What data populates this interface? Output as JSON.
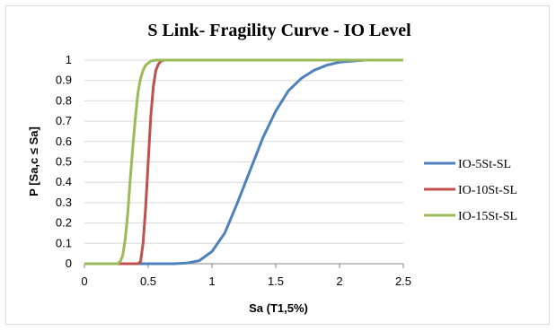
{
  "chart_data": {
    "type": "line",
    "title": "S Link- Fragility Curve - IO Level",
    "xlabel": "Sa (T1,5%)",
    "ylabel": "P [Sa,c ≤ Sa]",
    "xlim": [
      0,
      2.5
    ],
    "ylim": [
      0,
      1
    ],
    "xticks": [
      "0",
      "0.5",
      "1",
      "1.5",
      "2",
      "2.5"
    ],
    "yticks": [
      "0",
      "0.1",
      "0.2",
      "0.3",
      "0.4",
      "0.5",
      "0.6",
      "0.7",
      "0.8",
      "0.9",
      "1"
    ],
    "grid": "horizontal",
    "legend_position": "right",
    "series": [
      {
        "name": "IO-5St-SL",
        "color": "#4f81bd",
        "points": [
          [
            0,
            0
          ],
          [
            0.5,
            0
          ],
          [
            0.7,
            0
          ],
          [
            0.8,
            0.003
          ],
          [
            0.9,
            0.015
          ],
          [
            1.0,
            0.06
          ],
          [
            1.1,
            0.15
          ],
          [
            1.2,
            0.3
          ],
          [
            1.3,
            0.46
          ],
          [
            1.4,
            0.62
          ],
          [
            1.5,
            0.75
          ],
          [
            1.6,
            0.85
          ],
          [
            1.7,
            0.91
          ],
          [
            1.8,
            0.95
          ],
          [
            1.9,
            0.975
          ],
          [
            2.0,
            0.99
          ],
          [
            2.1,
            0.995
          ],
          [
            2.2,
            1
          ],
          [
            2.5,
            1
          ]
        ]
      },
      {
        "name": "IO-10St-SL",
        "color": "#c0504d",
        "points": [
          [
            0,
            0
          ],
          [
            0.42,
            0
          ],
          [
            0.44,
            0.01
          ],
          [
            0.46,
            0.1
          ],
          [
            0.48,
            0.28
          ],
          [
            0.5,
            0.5
          ],
          [
            0.52,
            0.72
          ],
          [
            0.54,
            0.87
          ],
          [
            0.56,
            0.95
          ],
          [
            0.58,
            0.98
          ],
          [
            0.6,
            0.995
          ],
          [
            0.63,
            1
          ],
          [
            2.5,
            1
          ]
        ]
      },
      {
        "name": "IO-15St-SL",
        "color": "#9bbb59",
        "points": [
          [
            0,
            0
          ],
          [
            0.26,
            0
          ],
          [
            0.28,
            0.01
          ],
          [
            0.3,
            0.04
          ],
          [
            0.32,
            0.12
          ],
          [
            0.34,
            0.25
          ],
          [
            0.36,
            0.42
          ],
          [
            0.38,
            0.58
          ],
          [
            0.4,
            0.72
          ],
          [
            0.42,
            0.84
          ],
          [
            0.44,
            0.91
          ],
          [
            0.46,
            0.95
          ],
          [
            0.48,
            0.975
          ],
          [
            0.52,
            0.995
          ],
          [
            0.56,
            1
          ],
          [
            2.5,
            1
          ]
        ]
      }
    ]
  }
}
